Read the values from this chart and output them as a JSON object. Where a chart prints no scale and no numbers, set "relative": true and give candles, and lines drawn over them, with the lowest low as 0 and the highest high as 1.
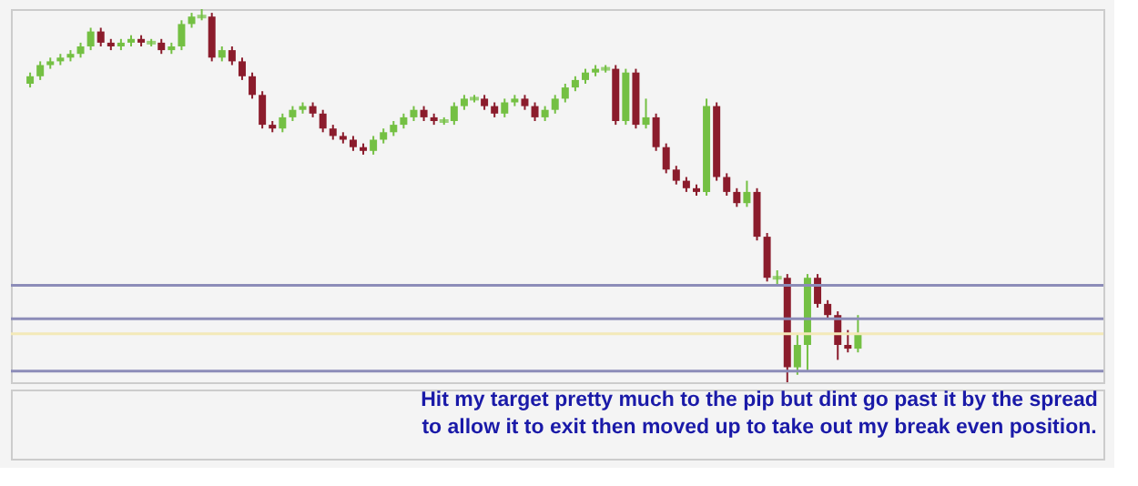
{
  "chart_data": {
    "type": "candlestick",
    "relative": true,
    "categories": [
      null,
      null,
      null,
      null,
      null,
      null,
      null,
      null,
      null,
      null,
      null,
      null,
      null,
      null,
      null,
      null,
      null,
      null,
      null,
      null,
      null,
      null,
      null,
      null,
      null,
      null,
      null,
      null,
      null,
      null,
      null,
      null,
      null,
      null,
      null,
      null,
      null,
      null,
      null,
      null,
      null,
      null,
      null,
      null,
      null,
      null,
      null,
      null,
      null,
      null,
      null,
      null,
      null,
      null,
      null,
      null,
      null,
      null,
      null,
      null,
      null,
      null,
      null,
      null,
      null,
      null,
      null,
      null,
      null,
      null,
      null,
      null,
      null,
      null,
      null,
      null,
      null,
      null,
      null,
      null,
      null,
      null,
      null
    ],
    "ohlc": [
      [
        0.8,
        0.83,
        0.79,
        0.82
      ],
      [
        0.82,
        0.86,
        0.81,
        0.85
      ],
      [
        0.85,
        0.87,
        0.84,
        0.86
      ],
      [
        0.86,
        0.88,
        0.85,
        0.87
      ],
      [
        0.87,
        0.89,
        0.86,
        0.88
      ],
      [
        0.88,
        0.91,
        0.87,
        0.9
      ],
      [
        0.9,
        0.95,
        0.89,
        0.94
      ],
      [
        0.94,
        0.95,
        0.9,
        0.91
      ],
      [
        0.91,
        0.92,
        0.89,
        0.9
      ],
      [
        0.9,
        0.92,
        0.89,
        0.91
      ],
      [
        0.91,
        0.93,
        0.9,
        0.92
      ],
      [
        0.92,
        0.93,
        0.9,
        0.91
      ],
      [
        0.91,
        0.92,
        0.9,
        0.91
      ],
      [
        0.91,
        0.92,
        0.88,
        0.89
      ],
      [
        0.89,
        0.91,
        0.88,
        0.9
      ],
      [
        0.9,
        0.97,
        0.89,
        0.96
      ],
      [
        0.96,
        0.99,
        0.95,
        0.98
      ],
      [
        0.98,
        1,
        0.97,
        0.98
      ],
      [
        0.98,
        0.99,
        0.86,
        0.87
      ],
      [
        0.87,
        0.9,
        0.86,
        0.89
      ],
      [
        0.89,
        0.9,
        0.85,
        0.86
      ],
      [
        0.86,
        0.87,
        0.81,
        0.82
      ],
      [
        0.82,
        0.83,
        0.76,
        0.77
      ],
      [
        0.77,
        0.78,
        0.68,
        0.69
      ],
      [
        0.69,
        0.7,
        0.67,
        0.68
      ],
      [
        0.68,
        0.72,
        0.67,
        0.71
      ],
      [
        0.71,
        0.74,
        0.7,
        0.73
      ],
      [
        0.73,
        0.75,
        0.72,
        0.74
      ],
      [
        0.74,
        0.75,
        0.71,
        0.72
      ],
      [
        0.72,
        0.73,
        0.67,
        0.68
      ],
      [
        0.68,
        0.69,
        0.65,
        0.66
      ],
      [
        0.66,
        0.67,
        0.64,
        0.65
      ],
      [
        0.65,
        0.66,
        0.62,
        0.63
      ],
      [
        0.63,
        0.64,
        0.61,
        0.62
      ],
      [
        0.62,
        0.66,
        0.61,
        0.65
      ],
      [
        0.65,
        0.68,
        0.64,
        0.67
      ],
      [
        0.67,
        0.7,
        0.66,
        0.69
      ],
      [
        0.69,
        0.72,
        0.68,
        0.71
      ],
      [
        0.71,
        0.74,
        0.7,
        0.73
      ],
      [
        0.73,
        0.74,
        0.7,
        0.71
      ],
      [
        0.71,
        0.72,
        0.69,
        0.7
      ],
      [
        0.7,
        0.71,
        0.69,
        0.7
      ],
      [
        0.7,
        0.75,
        0.69,
        0.74
      ],
      [
        0.74,
        0.77,
        0.73,
        0.76
      ],
      [
        0.76,
        0.77,
        0.75,
        0.76
      ],
      [
        0.76,
        0.77,
        0.73,
        0.74
      ],
      [
        0.74,
        0.75,
        0.71,
        0.72
      ],
      [
        0.72,
        0.76,
        0.71,
        0.75
      ],
      [
        0.75,
        0.77,
        0.74,
        0.76
      ],
      [
        0.76,
        0.77,
        0.73,
        0.74
      ],
      [
        0.74,
        0.75,
        0.7,
        0.71
      ],
      [
        0.71,
        0.74,
        0.7,
        0.73
      ],
      [
        0.73,
        0.77,
        0.72,
        0.76
      ],
      [
        0.76,
        0.8,
        0.75,
        0.79
      ],
      [
        0.79,
        0.82,
        0.78,
        0.81
      ],
      [
        0.81,
        0.84,
        0.8,
        0.83
      ],
      [
        0.83,
        0.85,
        0.82,
        0.84
      ],
      [
        0.84,
        0.85,
        0.83,
        0.84
      ],
      [
        0.84,
        0.85,
        0.69,
        0.7
      ],
      [
        0.7,
        0.84,
        0.69,
        0.83
      ],
      [
        0.83,
        0.84,
        0.68,
        0.69
      ],
      [
        0.69,
        0.76,
        0.68,
        0.71
      ],
      [
        0.71,
        0.72,
        0.62,
        0.63
      ],
      [
        0.63,
        0.64,
        0.56,
        0.57
      ],
      [
        0.57,
        0.58,
        0.53,
        0.54
      ],
      [
        0.54,
        0.55,
        0.51,
        0.52
      ],
      [
        0.52,
        0.53,
        0.5,
        0.51
      ],
      [
        0.51,
        0.76,
        0.5,
        0.74
      ],
      [
        0.74,
        0.75,
        0.54,
        0.55
      ],
      [
        0.55,
        0.56,
        0.5,
        0.51
      ],
      [
        0.51,
        0.52,
        0.47,
        0.48
      ],
      [
        0.48,
        0.54,
        0.47,
        0.51
      ],
      [
        0.51,
        0.52,
        0.38,
        0.39
      ],
      [
        0.39,
        0.4,
        0.27,
        0.28
      ],
      [
        0.28,
        0.3,
        0.26,
        0.28
      ],
      [
        0.28,
        0.29,
        0,
        0.04
      ],
      [
        0.04,
        0.13,
        0.02,
        0.1
      ],
      [
        0.1,
        0.29,
        0.03,
        0.28
      ],
      [
        0.28,
        0.29,
        0.2,
        0.21
      ],
      [
        0.21,
        0.22,
        0.17,
        0.18
      ],
      [
        0.18,
        0.19,
        0.06,
        0.1
      ],
      [
        0.1,
        0.14,
        0.08,
        0.09
      ],
      [
        0.09,
        0.18,
        0.08,
        0.13
      ]
    ],
    "colors": [
      "#74c043",
      "#74c043",
      "#74c043",
      "#74c043",
      "#74c043",
      "#74c043",
      "#74c043",
      "#8b1c2c",
      "#8b1c2c",
      "#74c043",
      "#74c043",
      "#8b1c2c",
      "#74c043",
      "#8b1c2c",
      "#74c043",
      "#74c043",
      "#74c043",
      "#74c043",
      "#8b1c2c",
      "#74c043",
      "#8b1c2c",
      "#8b1c2c",
      "#8b1c2c",
      "#8b1c2c",
      "#8b1c2c",
      "#74c043",
      "#74c043",
      "#74c043",
      "#8b1c2c",
      "#8b1c2c",
      "#8b1c2c",
      "#8b1c2c",
      "#8b1c2c",
      "#8b1c2c",
      "#74c043",
      "#74c043",
      "#74c043",
      "#74c043",
      "#74c043",
      "#8b1c2c",
      "#8b1c2c",
      "#74c043",
      "#74c043",
      "#74c043",
      "#74c043",
      "#8b1c2c",
      "#8b1c2c",
      "#74c043",
      "#74c043",
      "#8b1c2c",
      "#8b1c2c",
      "#74c043",
      "#74c043",
      "#74c043",
      "#74c043",
      "#74c043",
      "#74c043",
      "#74c043",
      "#8b1c2c",
      "#74c043",
      "#8b1c2c",
      "#74c043",
      "#8b1c2c",
      "#8b1c2c",
      "#8b1c2c",
      "#8b1c2c",
      "#8b1c2c",
      "#74c043",
      "#8b1c2c",
      "#8b1c2c",
      "#8b1c2c",
      "#74c043",
      "#8b1c2c",
      "#8b1c2c",
      "#74c043",
      "#8b1c2c",
      "#74c043",
      "#74c043",
      "#8b1c2c",
      "#8b1c2c",
      "#8b1c2c",
      "#8b1c2c",
      "#74c043"
    ],
    "ref_lines": [
      {
        "axis": "y",
        "value": 0.26,
        "color": "#8c8cb8"
      },
      {
        "axis": "y",
        "value": 0.17,
        "color": "#8c8cb8"
      },
      {
        "axis": "y",
        "value": 0.13,
        "color": "#f3e9b8"
      },
      {
        "axis": "y",
        "value": 0.03,
        "color": "#8c8cb8"
      }
    ],
    "annotations": [
      "Hit my target pretty much to the pip but dint go past it by the spread\nto allow it to exit then moved up to take out my break even position."
    ]
  }
}
